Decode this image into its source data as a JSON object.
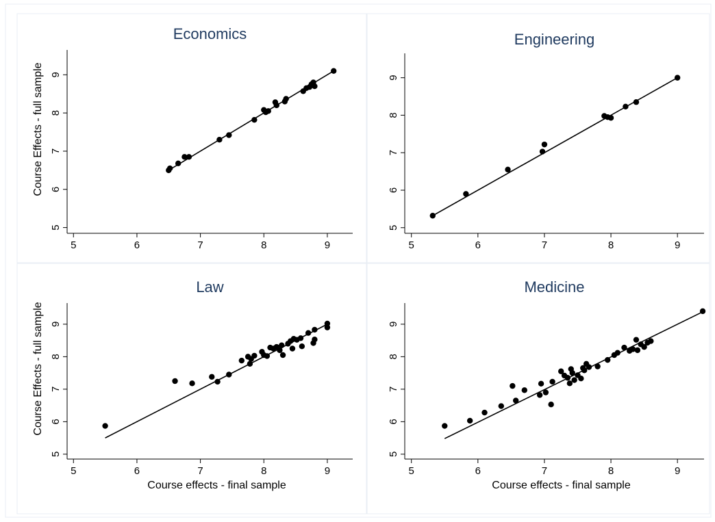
{
  "chart_data": [
    {
      "type": "scatter",
      "title": "Economics",
      "xlabel": "",
      "ylabel": "Course Effects - full sample",
      "xlim": [
        4.9,
        9.4
      ],
      "ylim": [
        4.85,
        9.65
      ],
      "xticks": [
        5,
        6,
        7,
        8,
        9
      ],
      "yticks": [
        5,
        6,
        7,
        8,
        9
      ],
      "fit_line": {
        "x": [
          6.5,
          9.1
        ],
        "y": [
          6.5,
          9.1
        ]
      },
      "points": [
        [
          6.5,
          6.5
        ],
        [
          6.52,
          6.55
        ],
        [
          6.65,
          6.68
        ],
        [
          6.75,
          6.85
        ],
        [
          6.82,
          6.85
        ],
        [
          7.3,
          7.3
        ],
        [
          7.45,
          7.42
        ],
        [
          7.85,
          7.82
        ],
        [
          8.0,
          8.08
        ],
        [
          8.03,
          8.02
        ],
        [
          8.07,
          8.05
        ],
        [
          8.18,
          8.28
        ],
        [
          8.2,
          8.2
        ],
        [
          8.33,
          8.3
        ],
        [
          8.35,
          8.37
        ],
        [
          8.62,
          8.57
        ],
        [
          8.67,
          8.65
        ],
        [
          8.72,
          8.68
        ],
        [
          8.75,
          8.75
        ],
        [
          8.78,
          8.8
        ],
        [
          8.8,
          8.7
        ],
        [
          9.1,
          9.1
        ]
      ]
    },
    {
      "type": "scatter",
      "title": "Engineering",
      "xlabel": "",
      "ylabel": "",
      "xlim": [
        4.9,
        9.4
      ],
      "ylim": [
        4.85,
        9.65
      ],
      "xticks": [
        5,
        6,
        7,
        8,
        9
      ],
      "yticks": [
        5,
        6,
        7,
        8,
        9
      ],
      "fit_line": {
        "x": [
          5.32,
          9.0
        ],
        "y": [
          5.32,
          9.0
        ]
      },
      "points": [
        [
          5.32,
          5.32
        ],
        [
          5.82,
          5.9
        ],
        [
          6.45,
          6.55
        ],
        [
          6.97,
          7.03
        ],
        [
          7.0,
          7.22
        ],
        [
          7.9,
          7.98
        ],
        [
          7.95,
          7.95
        ],
        [
          8.0,
          7.93
        ],
        [
          8.22,
          8.23
        ],
        [
          8.38,
          8.35
        ],
        [
          9.0,
          9.0
        ]
      ]
    },
    {
      "type": "scatter",
      "title": "Law",
      "xlabel": "Course effects - final sample",
      "ylabel": "Course Effects - full sample",
      "xlim": [
        4.9,
        9.4
      ],
      "ylim": [
        4.85,
        9.65
      ],
      "xticks": [
        5,
        6,
        7,
        8,
        9
      ],
      "yticks": [
        5,
        6,
        7,
        8,
        9
      ],
      "fit_line": {
        "x": [
          5.5,
          9.0
        ],
        "y": [
          5.5,
          9.0
        ]
      },
      "points": [
        [
          5.5,
          5.87
        ],
        [
          6.6,
          7.25
        ],
        [
          6.87,
          7.18
        ],
        [
          7.18,
          7.38
        ],
        [
          7.27,
          7.23
        ],
        [
          7.45,
          7.45
        ],
        [
          7.65,
          7.88
        ],
        [
          7.75,
          8.0
        ],
        [
          7.78,
          7.78
        ],
        [
          7.8,
          7.93
        ],
        [
          7.85,
          8.03
        ],
        [
          7.97,
          8.15
        ],
        [
          8.0,
          8.05
        ],
        [
          8.05,
          8.02
        ],
        [
          8.1,
          8.28
        ],
        [
          8.15,
          8.25
        ],
        [
          8.2,
          8.3
        ],
        [
          8.25,
          8.2
        ],
        [
          8.28,
          8.35
        ],
        [
          8.3,
          8.05
        ],
        [
          8.38,
          8.4
        ],
        [
          8.42,
          8.48
        ],
        [
          8.45,
          8.25
        ],
        [
          8.47,
          8.55
        ],
        [
          8.52,
          8.52
        ],
        [
          8.58,
          8.57
        ],
        [
          8.6,
          8.32
        ],
        [
          8.7,
          8.73
        ],
        [
          8.78,
          8.42
        ],
        [
          8.8,
          8.53
        ],
        [
          8.8,
          8.83
        ],
        [
          9.0,
          9.02
        ],
        [
          9.0,
          8.9
        ]
      ]
    },
    {
      "type": "scatter",
      "title": "Medicine",
      "xlabel": "Course effects - final sample",
      "ylabel": "",
      "xlim": [
        4.9,
        9.4
      ],
      "ylim": [
        4.85,
        9.65
      ],
      "xticks": [
        5,
        6,
        7,
        8,
        9
      ],
      "yticks": [
        5,
        6,
        7,
        8,
        9
      ],
      "fit_line": {
        "x": [
          5.5,
          9.38
        ],
        "y": [
          5.48,
          9.38
        ]
      },
      "points": [
        [
          5.5,
          5.87
        ],
        [
          5.88,
          6.03
        ],
        [
          6.1,
          6.28
        ],
        [
          6.35,
          6.48
        ],
        [
          6.52,
          7.1
        ],
        [
          6.57,
          6.65
        ],
        [
          6.7,
          6.97
        ],
        [
          6.93,
          6.82
        ],
        [
          6.95,
          7.17
        ],
        [
          7.02,
          6.9
        ],
        [
          7.1,
          6.53
        ],
        [
          7.12,
          7.23
        ],
        [
          7.25,
          7.55
        ],
        [
          7.3,
          7.42
        ],
        [
          7.35,
          7.35
        ],
        [
          7.38,
          7.18
        ],
        [
          7.4,
          7.62
        ],
        [
          7.42,
          7.5
        ],
        [
          7.45,
          7.28
        ],
        [
          7.5,
          7.43
        ],
        [
          7.55,
          7.33
        ],
        [
          7.58,
          7.65
        ],
        [
          7.6,
          7.58
        ],
        [
          7.63,
          7.78
        ],
        [
          7.67,
          7.68
        ],
        [
          7.8,
          7.7
        ],
        [
          7.95,
          7.9
        ],
        [
          8.05,
          8.05
        ],
        [
          8.1,
          8.12
        ],
        [
          8.2,
          8.28
        ],
        [
          8.28,
          8.18
        ],
        [
          8.33,
          8.23
        ],
        [
          8.38,
          8.52
        ],
        [
          8.4,
          8.2
        ],
        [
          8.45,
          8.38
        ],
        [
          8.5,
          8.3
        ],
        [
          8.55,
          8.43
        ],
        [
          8.6,
          8.48
        ],
        [
          9.38,
          9.4
        ]
      ]
    }
  ]
}
